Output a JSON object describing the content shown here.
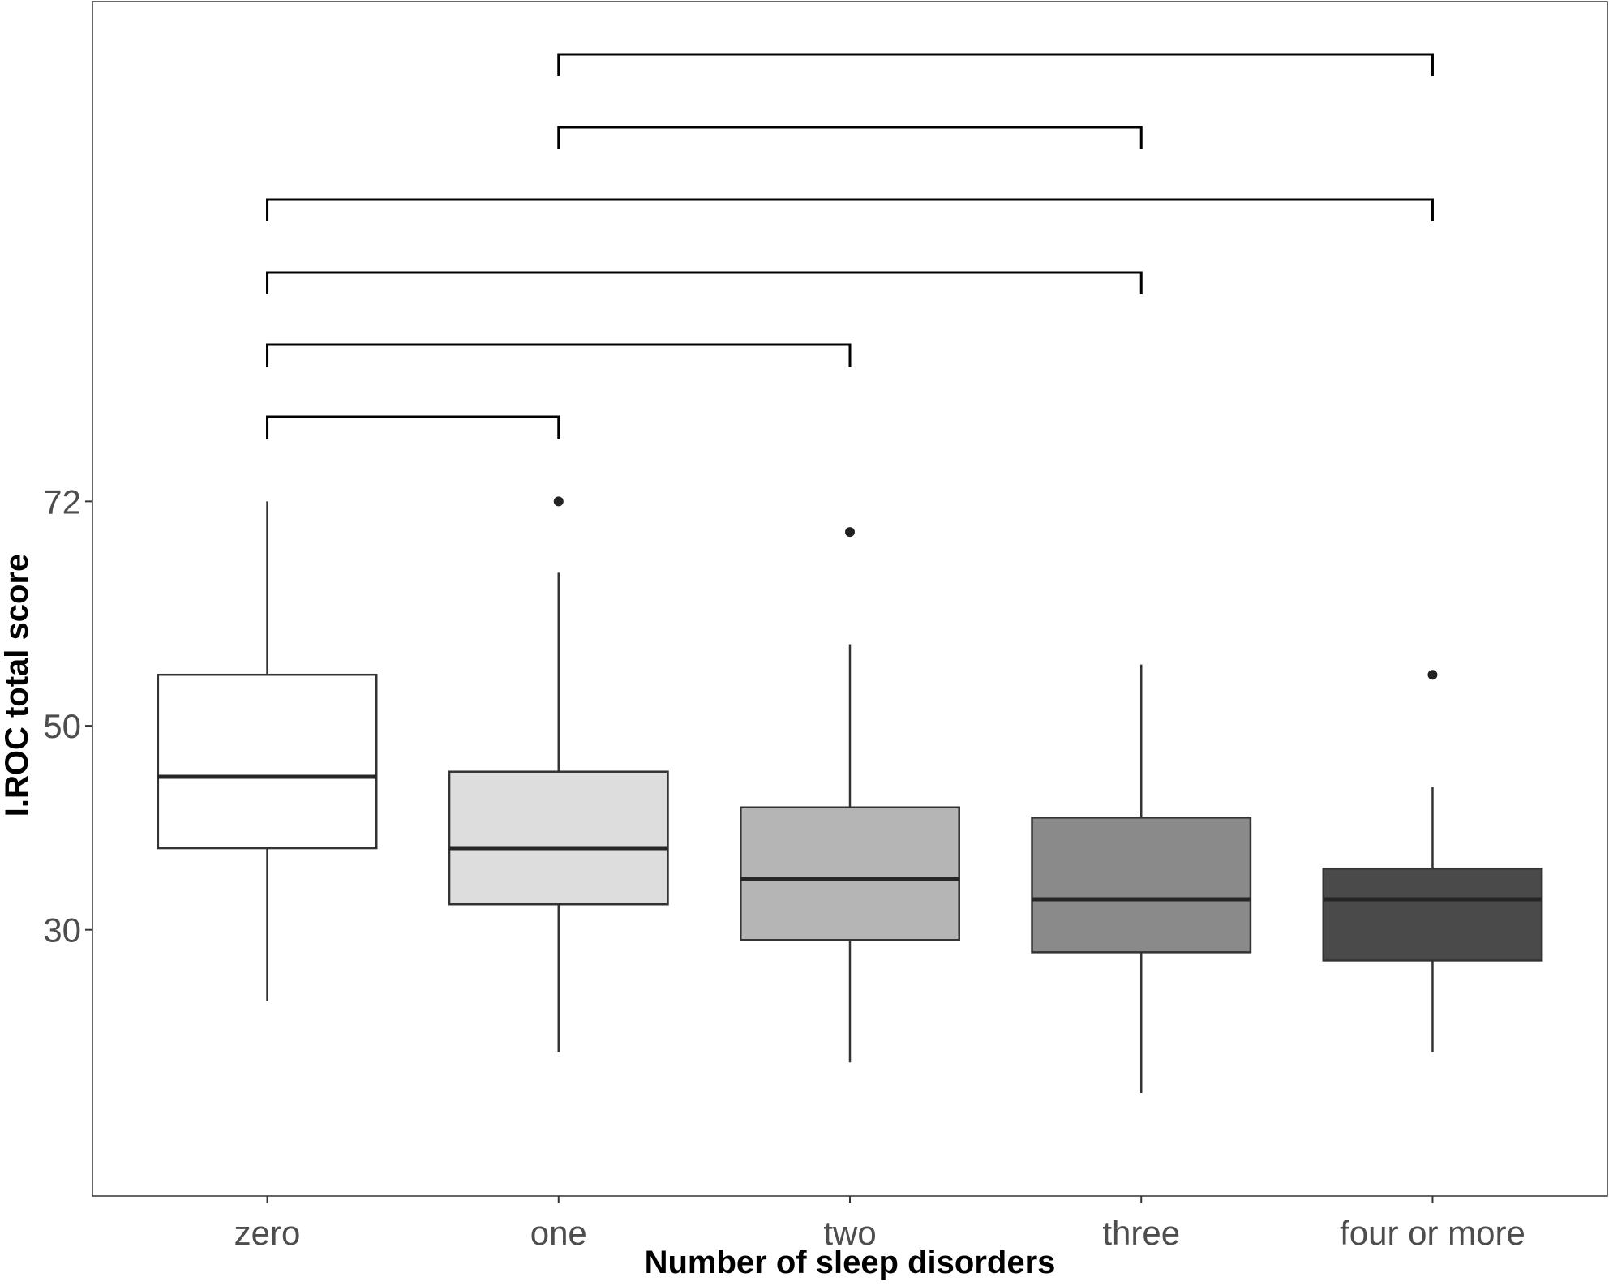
{
  "chart_data": {
    "type": "box",
    "title": "",
    "xlabel": "Number of sleep disorders",
    "ylabel": "I.ROC total score",
    "ylim": [
      3.9,
      121
    ],
    "yticks": [
      30,
      50,
      72
    ],
    "grid": false,
    "legend": "none",
    "categories": [
      "zero",
      "one",
      "two",
      "three",
      "four or more"
    ],
    "boxes": [
      {
        "category": "zero",
        "whisker_low": 23,
        "q1": 38,
        "median": 45,
        "q3": 55,
        "whisker_high": 72,
        "outliers": [],
        "fill": "#ffffff"
      },
      {
        "category": "one",
        "whisker_low": 18,
        "q1": 32.5,
        "median": 38,
        "q3": 45.5,
        "whisker_high": 65,
        "outliers": [
          72
        ],
        "fill": "#dddddd"
      },
      {
        "category": "two",
        "whisker_low": 17,
        "q1": 29,
        "median": 35,
        "q3": 42,
        "whisker_high": 58,
        "outliers": [
          69
        ],
        "fill": "#b5b5b5"
      },
      {
        "category": "three",
        "whisker_low": 14,
        "q1": 27.8,
        "median": 33,
        "q3": 41,
        "whisker_high": 56,
        "outliers": [],
        "fill": "#8a8a8a"
      },
      {
        "category": "four or more",
        "whisker_low": 18,
        "q1": 27,
        "median": 33,
        "q3": 36,
        "whisker_high": 44,
        "outliers": [
          55
        ],
        "fill": "#4a4a4a"
      }
    ],
    "comparison_brackets": [
      {
        "from": "zero",
        "to": "one"
      },
      {
        "from": "zero",
        "to": "two"
      },
      {
        "from": "zero",
        "to": "three"
      },
      {
        "from": "zero",
        "to": "four or more"
      },
      {
        "from": "one",
        "to": "three"
      },
      {
        "from": "one",
        "to": "four or more"
      }
    ],
    "colors": {
      "line": "#333333",
      "median": "#262626",
      "outlier": "#222222",
      "bracket": "#000000",
      "panel_border": "#333333"
    }
  }
}
